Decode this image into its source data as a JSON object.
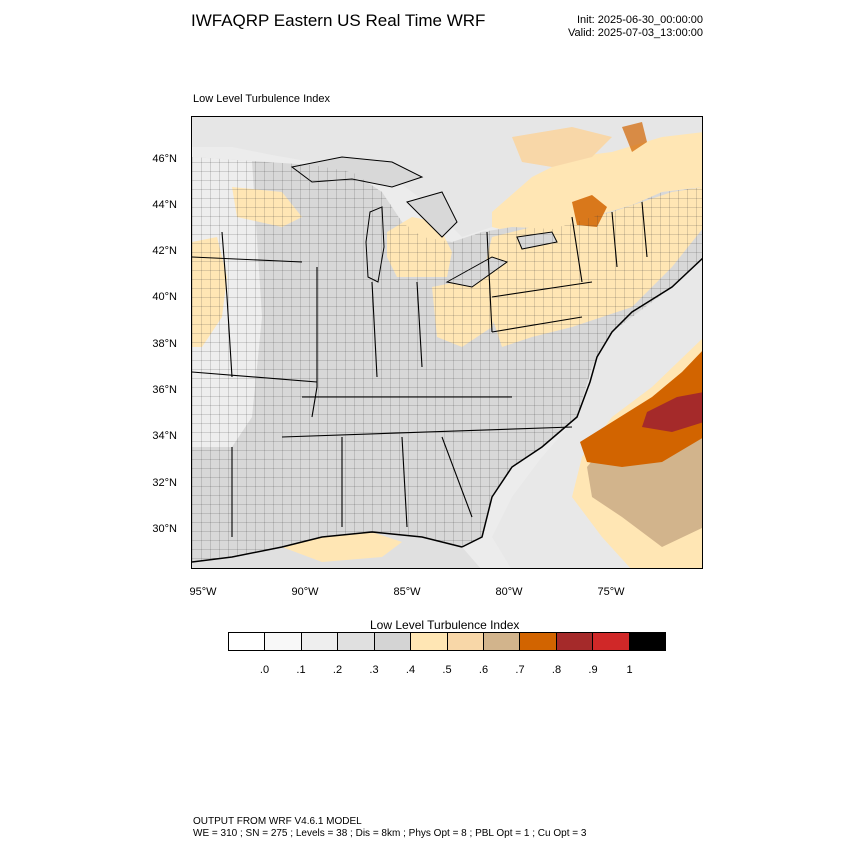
{
  "header": {
    "title": "IWFAQRP Eastern US Real Time WRF",
    "init": "Init: 2025-06-30_00:00:00",
    "valid": "Valid: 2025-07-03_13:00:00"
  },
  "map": {
    "subtitle": "Low Level Turbulence Index",
    "lat_labels": [
      "46°N",
      "44°N",
      "42°N",
      "40°N",
      "38°N",
      "36°N",
      "34°N",
      "32°N",
      "30°N"
    ],
    "lon_labels": [
      "95°W",
      "90°W",
      "85°W",
      "80°W",
      "75°W"
    ]
  },
  "colorbar": {
    "title": "Low Level Turbulence Index",
    "colors": [
      "#ffffff",
      "#f8f8f8",
      "#eeeeee",
      "#e0e0e0",
      "#d4d4d4",
      "#ffe6b4",
      "#f8d7a8",
      "#d2b48c",
      "#d26400",
      "#a52a2a",
      "#d02828",
      "#000000"
    ],
    "labels": [
      ".0",
      ".1",
      ".2",
      ".3",
      ".4",
      ".5",
      ".6",
      ".7",
      ".8",
      ".9",
      "1"
    ]
  },
  "footer": {
    "line1": "OUTPUT FROM WRF V4.6.1 MODEL",
    "line2": "WE = 310 ; SN = 275 ; Levels = 38 ; Dis = 8km ; Phys Opt = 8 ; PBL Opt = 1 ; Cu Opt = 3"
  }
}
